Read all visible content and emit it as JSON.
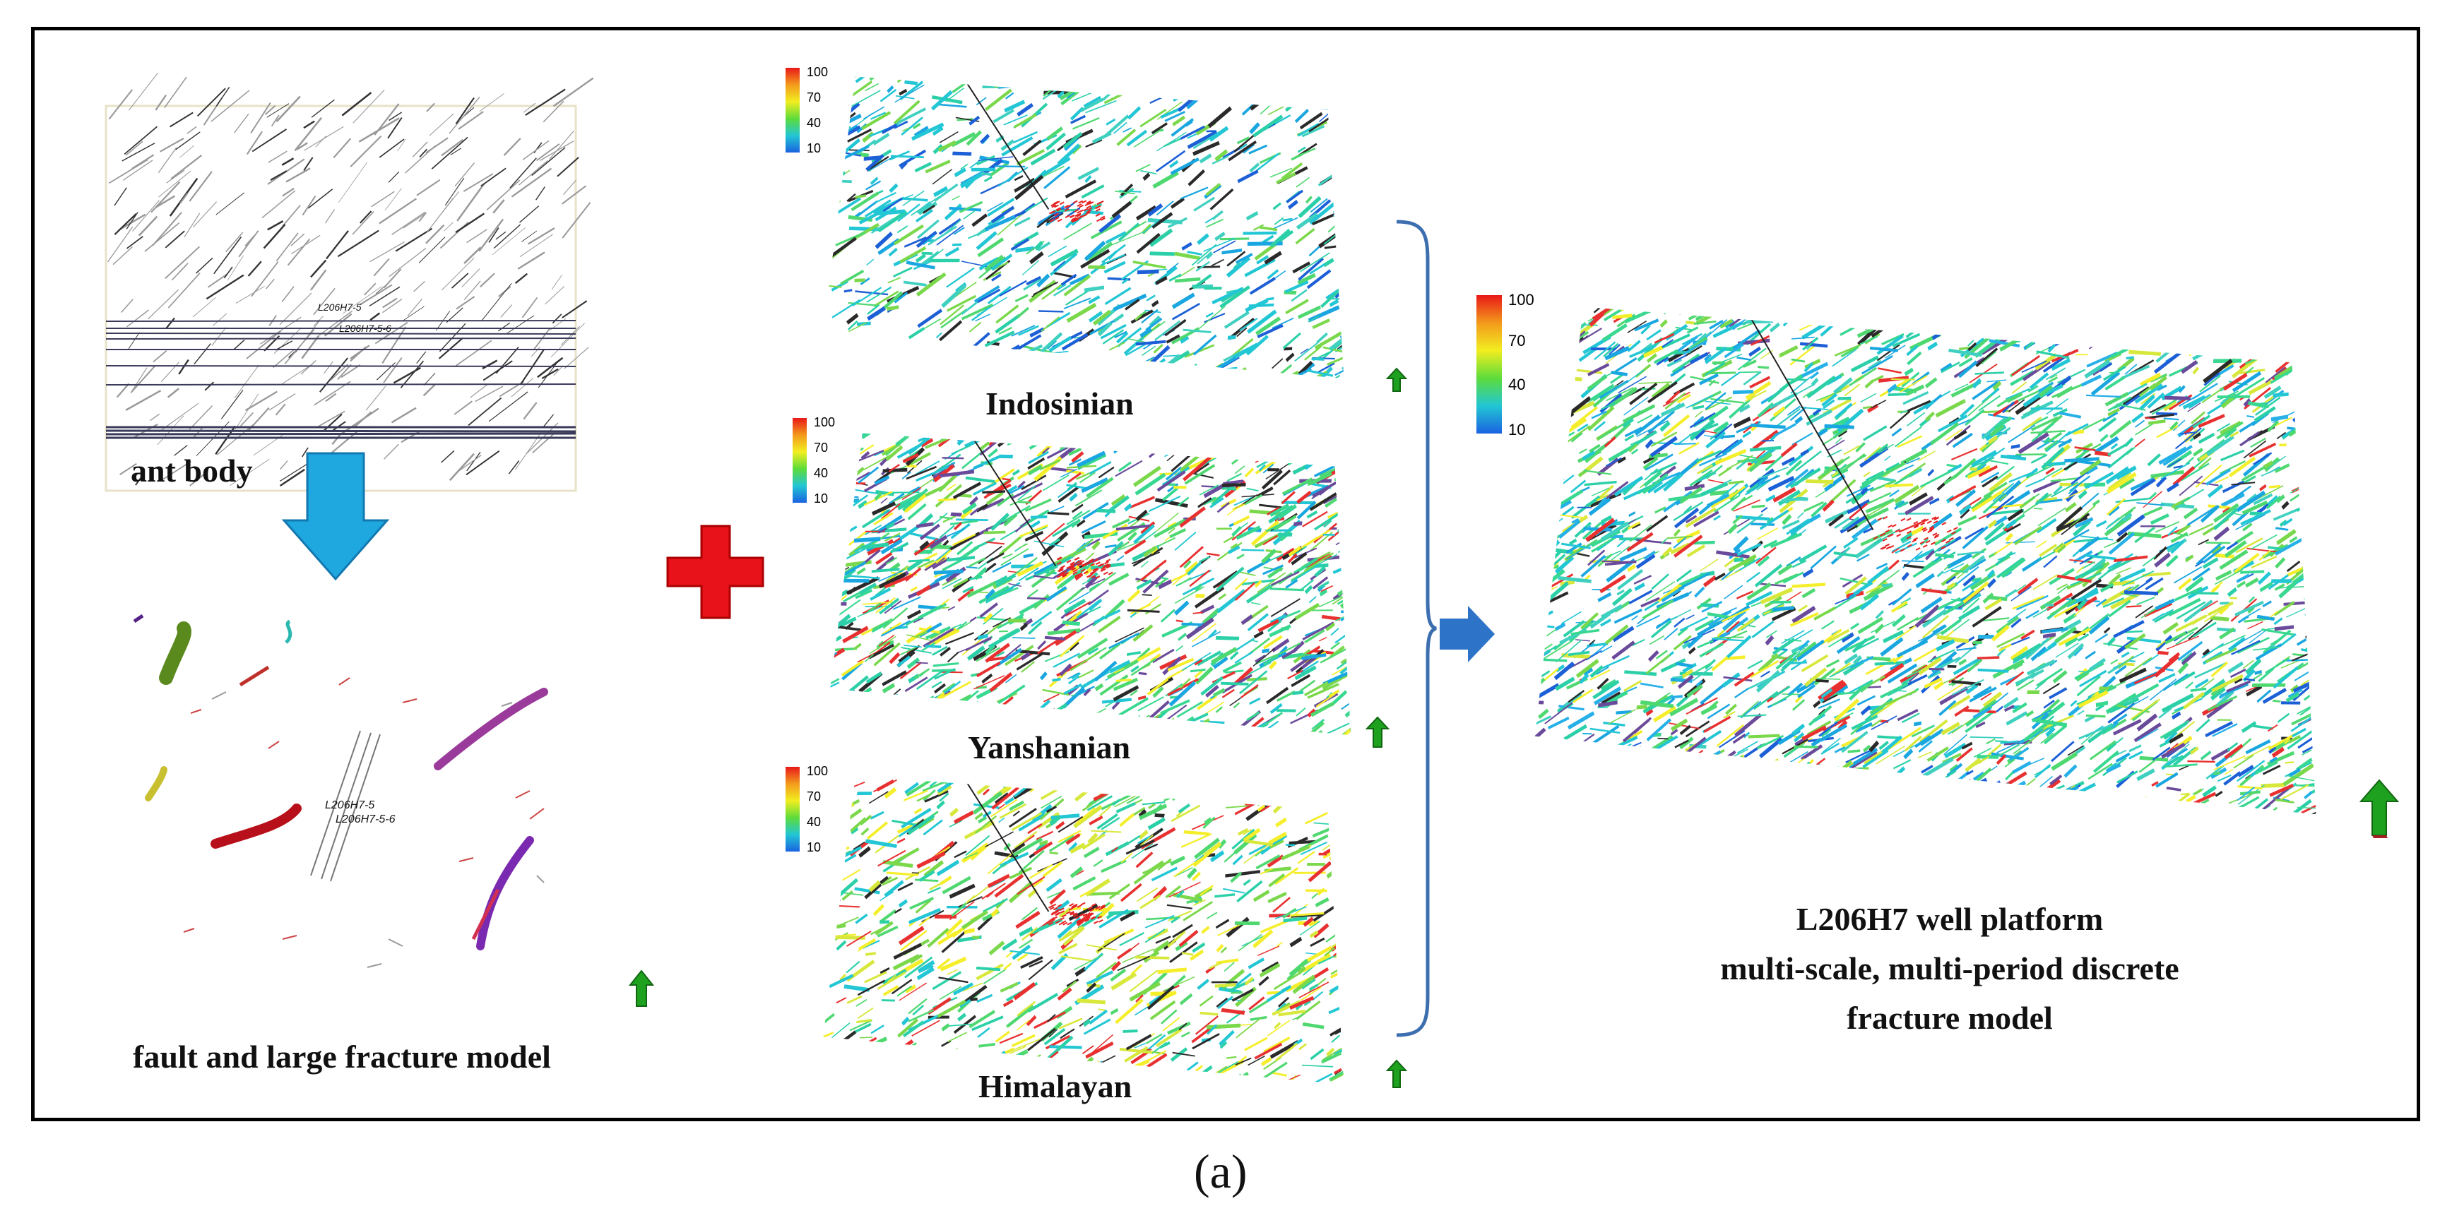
{
  "panels": {
    "ant_body": {
      "label": "ant body",
      "well_labels": [
        "L206H7-5",
        "L206H7-5-6"
      ]
    },
    "fault_model": {
      "label": "fault and large fracture model",
      "well_labels": [
        "L206H7-5",
        "L206H7-5-6"
      ]
    },
    "periods": [
      {
        "label": "Indosinian"
      },
      {
        "label": "Yanshanian"
      },
      {
        "label": "Himalayan"
      }
    ],
    "result": {
      "line1": "L206H7 well platform",
      "line2": "multi-scale, multi-period discrete",
      "line3": "fracture model"
    }
  },
  "colorbar": {
    "ticks": [
      "100",
      "70",
      "40",
      "10"
    ]
  },
  "caption": "(a)",
  "colors": {
    "down_arrow": "#1fa7e0",
    "plus": "#e8121b",
    "right_arrow": "#2d74c8",
    "brace": "#3d6fb0",
    "north_arrow": "#1ea11e"
  }
}
